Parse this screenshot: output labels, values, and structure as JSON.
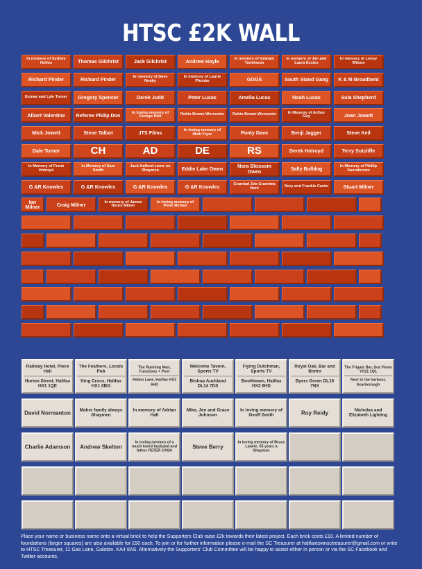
{
  "title": "HTSC £2K WALL",
  "footer_text": "Place your name or business name onto a virtual brick to help the Supporters Club raise £2k towards their latest project. Each brick costs £10. A limited number of foundations (larger squares) are also available for £50 each. To join or for further information please e-mail the SC Treasurer at halifaxtownsctreasurer@gmail.com or write to HTSC Treasurer, 11 Gas Lane, Galston. KA4 8AS. Alternatively the Supporters' Club Committee will be happy to assist either in person or via the SC Facebook and Twitter accounts.",
  "colors": {
    "background": "#2d4794",
    "brick": "#d0461c",
    "stone": "#e4ded6",
    "text": "#ffffff"
  },
  "brick_rows": [
    [
      "In memory of Sydney Hollos",
      "Thomas Gilchrist",
      "Jack Gilchrist",
      "Andrew Hoyle",
      "In memory of Graham Tomlinson",
      "In memory of Jim and Laura Eccles",
      "In memory of Lenny Wilson"
    ],
    [
      "Richard Pinder",
      "Richard Pinder",
      "In memory of Dave Noaby",
      "In memory of Laurie Plumbe",
      "GOGS",
      "South Stand Gang",
      "K & M Broadbent"
    ],
    [
      "Esmae and Lyle Turner",
      "Gregory Spencer",
      "Derek Judd",
      "Peter Lucas",
      "Amelia Lucas",
      "Noah Lucas",
      "Sula Shepherd"
    ],
    [
      "Albert Valentine",
      "Referee Philip Don",
      "In loving memory of George Holt",
      "Robin Brown Worcester",
      "Robin Brown Worcester",
      "In Memory of Arthur Guy",
      "Joan Jowett"
    ],
    [
      "Mick Jowett",
      "Steve Talbot",
      "JTS Films",
      "In loving memory of Mick Fryer",
      "Ponty Dave",
      "Benji Jagger",
      "Steve Keil"
    ],
    [
      "Dale Turner",
      "CH",
      "AD",
      "DE",
      "RS",
      "Derek Holroyd",
      "Terry Sutcliffe"
    ],
    [
      "In Memory of Frank Holroyd",
      "In Memory of Sam Smith",
      "Jack Halford come on Shaymen",
      "Eddie Lake Owen",
      "Nora Blossom Owen",
      "Sally Bulldog",
      "In Memory of Phillip Saunderson"
    ],
    [
      "G &R Knowles",
      "G &R Knowles",
      "G &R Knowles",
      "G &R Knowles",
      "Grandad Zeb Grandma Noni",
      "Rory and Frankie Carter",
      "Stuart Milner"
    ],
    [
      "Ian Milner",
      "Craig Milner",
      "In memory of James Henry Milner",
      "In loving memory of Peter McGee",
      "",
      "",
      "",
      ""
    ],
    [
      "",
      "",
      "",
      "",
      "",
      "",
      ""
    ],
    [
      "",
      "",
      "",
      "",
      "",
      "",
      "",
      ""
    ],
    [
      "",
      "",
      "",
      "",
      "",
      "",
      ""
    ],
    [
      "",
      "",
      "",
      "",
      "",
      "",
      "",
      ""
    ],
    [
      "",
      "",
      "",
      "",
      "",
      "",
      ""
    ],
    [
      "",
      "",
      "",
      "",
      "",
      "",
      "",
      ""
    ],
    [
      "",
      "",
      "",
      "",
      "",
      "",
      ""
    ]
  ],
  "foundation_rows": [
    [
      {
        "top": "Railway Hotel, Piece Hall",
        "bottom": "Horton Street, Halifax HX1 1QE"
      },
      {
        "top": "The Feathers, Locals Pub",
        "bottom": "King Cross, Halifax HX1 6BG"
      },
      {
        "top": "The Running Man, Functions + Pool",
        "bottom": "Pellon Lane, Halifax HX3 6HD"
      },
      {
        "top": "Welcome Tavern, Sports TV",
        "bottom": "Bishop Auckland DL14 7DS"
      },
      {
        "top": "Flying Dutchman, Sports TV",
        "bottom": "Boothtown, Halifax HX3 6HD"
      },
      {
        "top": "Royal Oak, Bar and Bistro",
        "bottom": "Byers Green DL16 7NX"
      },
      {
        "top": "The Frigate Bar, Sea Views YO11 1QL",
        "bottom": "Next to the harbour, Scarborough"
      }
    ],
    [
      "David Normanton",
      "Maher family always Shaymen",
      "In memory of Adrian Hall",
      "Mike, Jen and Grace Johnson",
      "In loving memory of Geoff Smith",
      "Roy Reidy",
      "Nicholas and Elizabeth Lighting"
    ],
    [
      "Charlie Adamson",
      "Andrew Skelton",
      "In loving memory of a much loved husband and father PETER CASH",
      "Steve Berry",
      "In loving memory of Bruce Lawrie. 55 years a Shayman",
      "",
      ""
    ],
    [
      "",
      "",
      "",
      "",
      "",
      "",
      ""
    ],
    [
      "",
      "",
      "",
      "",
      "",
      "",
      ""
    ]
  ]
}
